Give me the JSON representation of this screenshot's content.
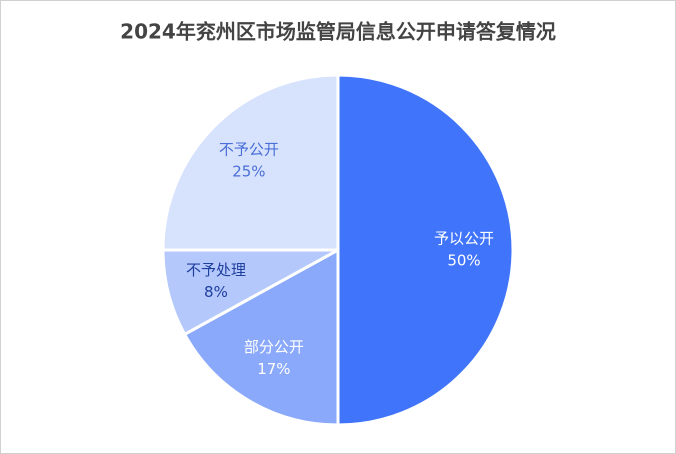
{
  "chart_data": {
    "type": "pie",
    "title": "2024年兖州区市场监管局信息公开申请答复情况",
    "categories": [
      "予以公开",
      "部分公开",
      "不予处理",
      "不予公开"
    ],
    "values": [
      50,
      17,
      8,
      25
    ],
    "value_labels": [
      "50%",
      "17%",
      "8%",
      "25%"
    ],
    "colors": [
      "#3f74fb",
      "#8ba9fb",
      "#b4c8fc",
      "#d7e2fd"
    ],
    "label_colors": [
      "#ffffff",
      "#ffffff",
      "#1f3f9e",
      "#4a6fd6"
    ]
  }
}
